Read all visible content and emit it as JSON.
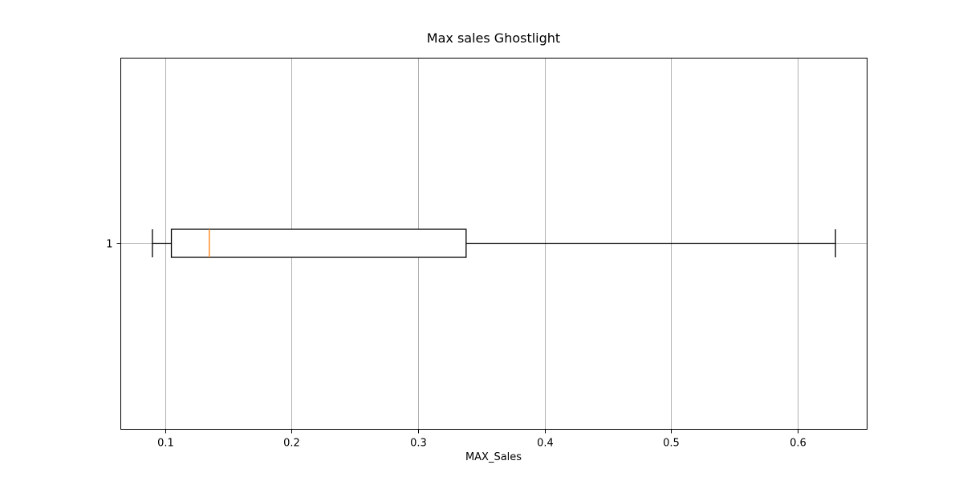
{
  "chart_data": {
    "type": "boxplot",
    "orientation": "horizontal",
    "title": "Max sales Ghostlight",
    "xlabel": "MAX_Sales",
    "ylabel": "",
    "xlim": [
      0.065,
      0.655
    ],
    "x_ticks": [
      0.1,
      0.2,
      0.3,
      0.4,
      0.5,
      0.6
    ],
    "x_tick_labels": [
      "0.1",
      "0.2",
      "0.3",
      "0.4",
      "0.5",
      "0.6"
    ],
    "y_ticks": [
      "1"
    ],
    "grid": true,
    "boxes": [
      {
        "label": "1",
        "whisker_low": 0.09,
        "q1": 0.105,
        "median": 0.135,
        "q3": 0.338,
        "whisker_high": 0.63
      }
    ],
    "colors": {
      "box": "#000000",
      "median": "#ff7f0e",
      "grid": "#b0b0b0"
    }
  }
}
